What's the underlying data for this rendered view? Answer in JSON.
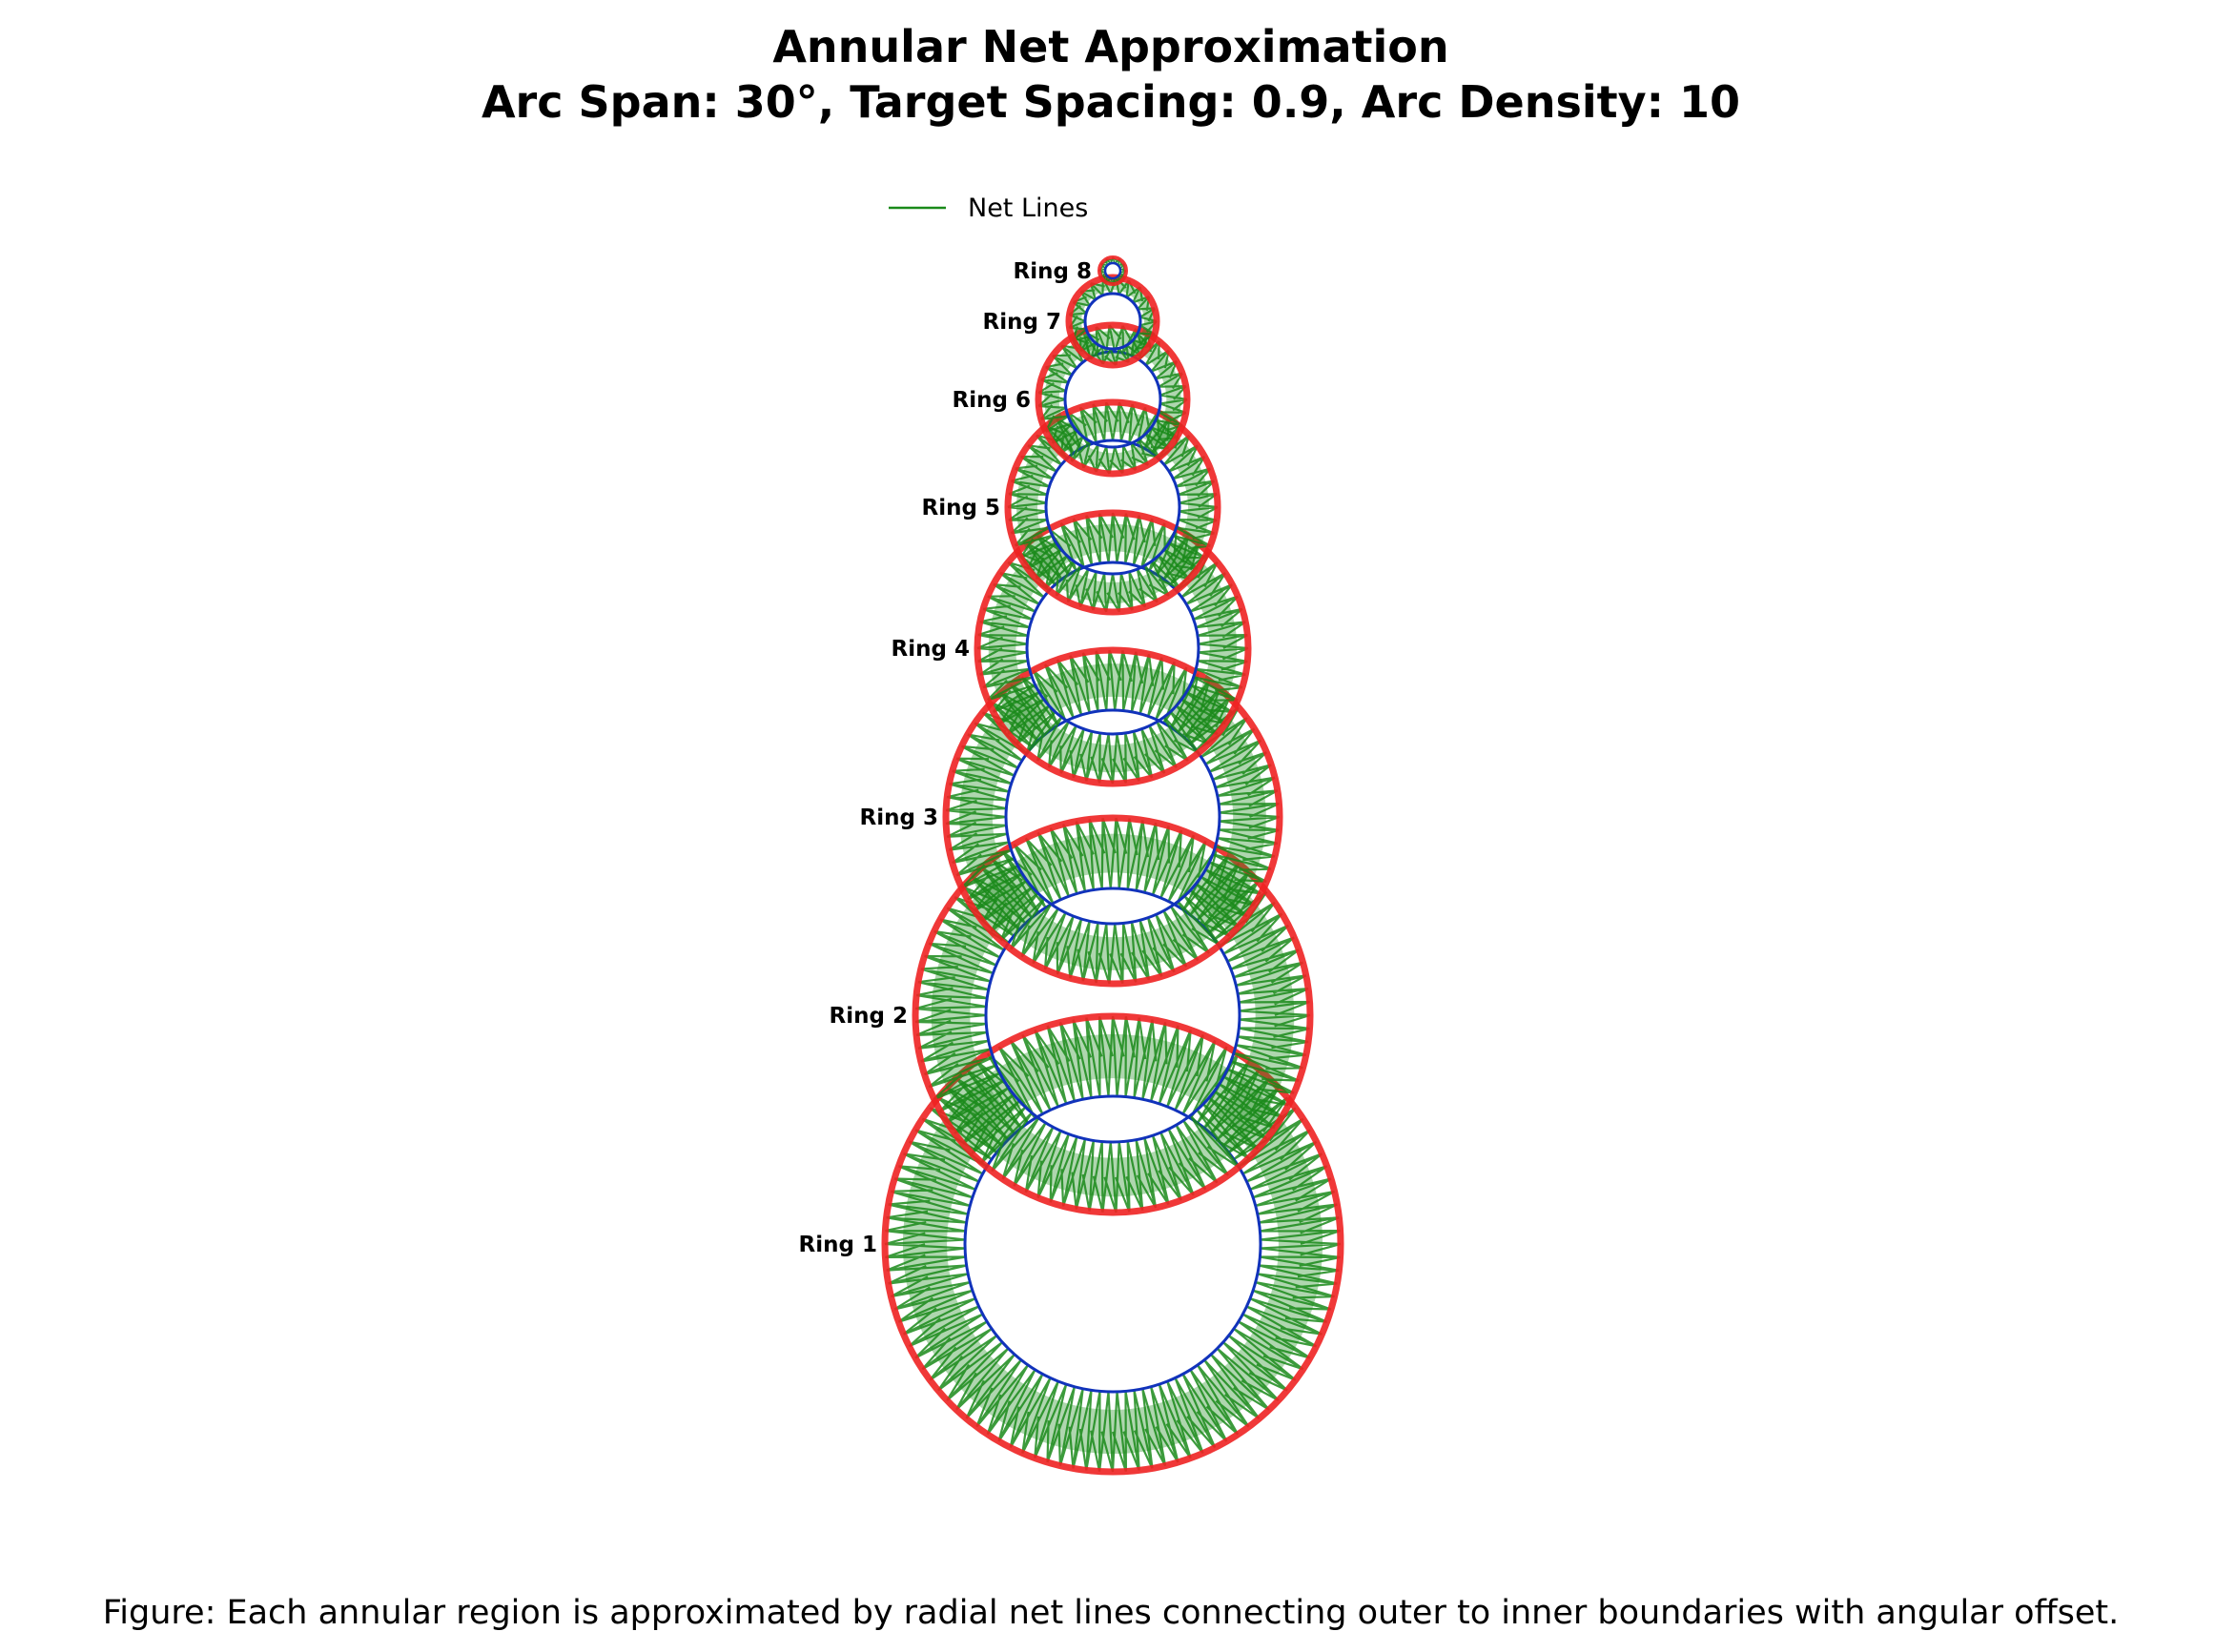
{
  "title": {
    "line1": "Annular Net Approximation",
    "line2": "Arc Span: 30°, Target Spacing: 0.9, Arc Density: 10"
  },
  "legend": {
    "label": "Net Lines",
    "color": "#1a8a1a"
  },
  "caption": "Figure: Each annular region is approximated by radial net lines connecting outer to inner boundaries with angular offset.",
  "colors": {
    "outer_boundary": "#ee2222",
    "inner_boundary": "#1133bb",
    "net_lines": "#1a8a1a"
  },
  "rings": [
    {
      "label": "Ring 1"
    },
    {
      "label": "Ring 2"
    },
    {
      "label": "Ring 3"
    },
    {
      "label": "Ring 4"
    },
    {
      "label": "Ring 5"
    },
    {
      "label": "Ring 6"
    },
    {
      "label": "Ring 7"
    },
    {
      "label": "Ring 8"
    }
  ]
}
